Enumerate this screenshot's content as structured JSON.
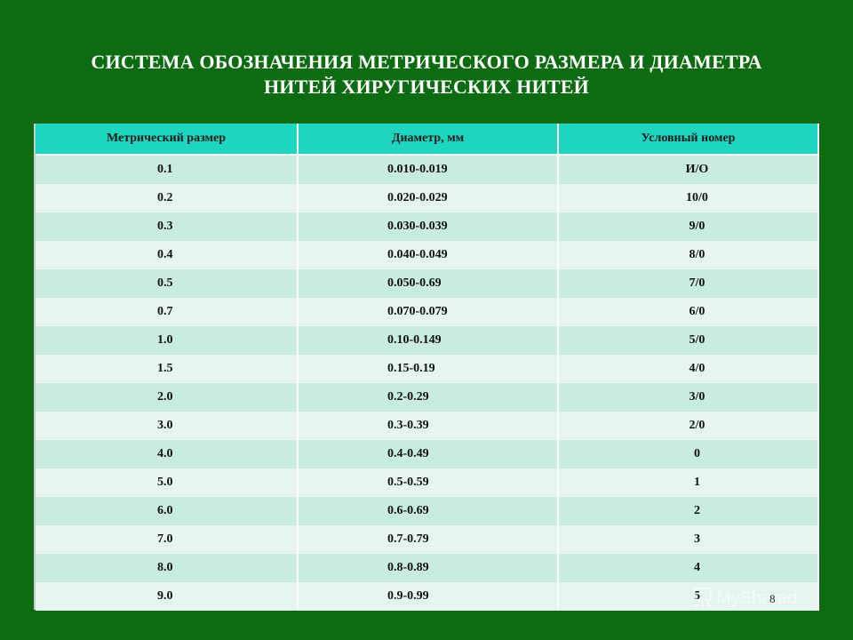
{
  "title": {
    "line1": "СИСТЕМА ОБОЗНАЧЕНИЯ МЕТРИЧЕСКОГО РАЗМЕРА И ДИАМЕТРА",
    "line2": "НИТЕЙ ХИРУГИЧЕСКИХ НИТЕЙ"
  },
  "table": {
    "headers": [
      "Метрический размер",
      "Диаметр, мм",
      "Условный номер"
    ],
    "rows": [
      [
        "0.1",
        "0.010-0.019",
        "И/О"
      ],
      [
        "0.2",
        "0.020-0.029",
        "10/0"
      ],
      [
        "0.3",
        "0.030-0.039",
        "9/0"
      ],
      [
        "0.4",
        "0.040-0.049",
        "8/0"
      ],
      [
        "0.5",
        "0.050-0.69",
        "7/0"
      ],
      [
        "0.7",
        "0.070-0.079",
        "6/0"
      ],
      [
        "1.0",
        "0.10-0.149",
        "5/0"
      ],
      [
        "1.5",
        "0.15-0.19",
        "4/0"
      ],
      [
        "2.0",
        "0.2-0.29",
        "3/0"
      ],
      [
        "3.0",
        "0.3-0.39",
        "2/0"
      ],
      [
        "4.0",
        "0.4-0.49",
        "0"
      ],
      [
        "5.0",
        "0.5-0.59",
        "1"
      ],
      [
        "6.0",
        "0.6-0.69",
        "2"
      ],
      [
        "7.0",
        "0.7-0.79",
        "3"
      ],
      [
        "8.0",
        "0.8-0.89",
        "4"
      ],
      [
        "9.0",
        "0.9-0.99",
        "5"
      ]
    ]
  },
  "page_number": "8",
  "watermark": {
    "text": "MyShared",
    "icon": "watermark-logo-icon"
  },
  "colors": {
    "background": "#0d6b11",
    "header_bg": "#1ed6bf",
    "row_odd": "#c9ebe2",
    "row_even": "#e6f5f1"
  }
}
